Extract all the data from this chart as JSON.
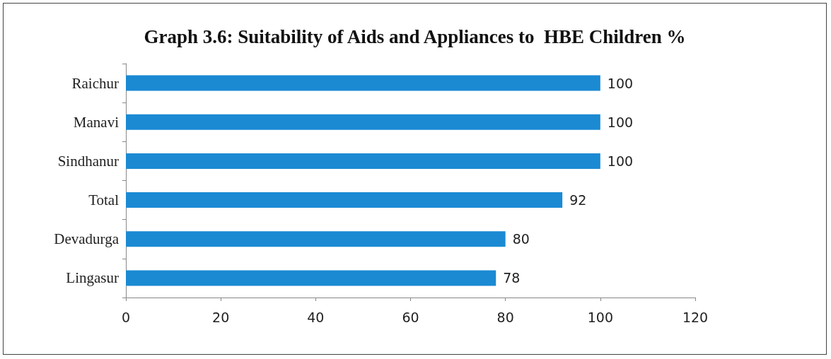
{
  "chart_data": {
    "type": "bar",
    "orientation": "horizontal",
    "title": "Graph 3.6: Suitability of Aids and Appliances to  HBE Children %",
    "categories": [
      "Raichur",
      "Manavi",
      "Sindhanur",
      "Total",
      "Devadurga",
      "Lingasur"
    ],
    "values": [
      100,
      100,
      100,
      92,
      80,
      78
    ],
    "color": "#1b8ad3",
    "xlim": [
      0,
      120
    ],
    "xticks": [
      0,
      20,
      40,
      60,
      80,
      100,
      120
    ],
    "grid": false,
    "data_labels": true
  }
}
